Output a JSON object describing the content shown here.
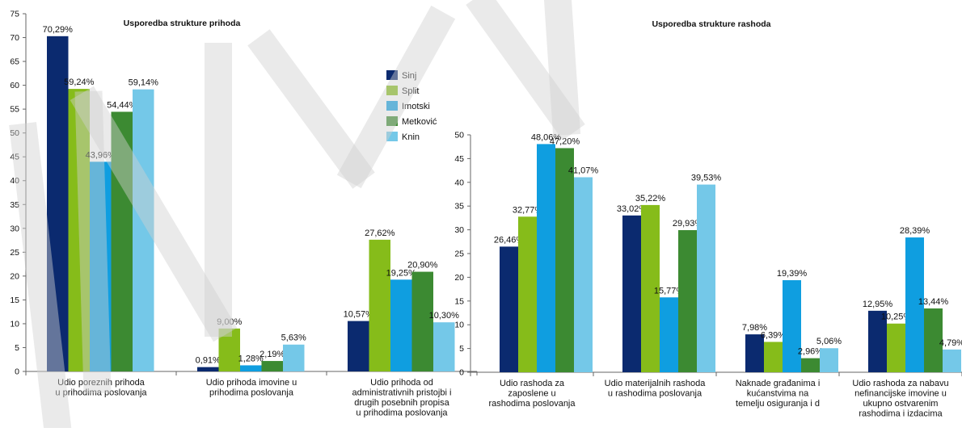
{
  "chart_data": [
    {
      "type": "bar",
      "title": "Usporedba strukture prihoda",
      "ylim": [
        0,
        75
      ],
      "yticks": [
        0,
        5,
        10,
        15,
        20,
        25,
        30,
        35,
        40,
        45,
        50,
        55,
        60,
        65,
        70,
        75
      ],
      "categories": [
        [
          "Udio poreznih prihoda",
          "u prihodima poslovanja"
        ],
        [
          "Udio prihoda imovine u",
          "prihodima poslovanja"
        ],
        [
          "Udio prihoda od",
          "administrativnih pristojbi i",
          "drugih posebnih propisa",
          "u prihodima poslovanja"
        ]
      ],
      "series": [
        {
          "name": "Sinj",
          "color": "#0b2a6f",
          "values": [
            70.29,
            0.91,
            10.57
          ],
          "labels": [
            "70,29%",
            "0,91%",
            "10,57%"
          ]
        },
        {
          "name": "Split",
          "color": "#86bc1a",
          "values": [
            59.24,
            9.0,
            27.62
          ],
          "labels": [
            "59,24%",
            "9,00%",
            "27,62%"
          ]
        },
        {
          "name": "Imotski",
          "color": "#0f9ee0",
          "values": [
            43.96,
            1.28,
            19.25
          ],
          "labels": [
            "43,96%",
            "1,28%",
            "19,25%"
          ]
        },
        {
          "name": "Metković",
          "color": "#3c8a32",
          "values": [
            54.44,
            2.19,
            20.9
          ],
          "labels": [
            "54,44%",
            "2,19%",
            "20,90%"
          ]
        },
        {
          "name": "Knin",
          "color": "#74c8e8",
          "values": [
            59.14,
            5.63,
            10.3
          ],
          "labels": [
            "59,14%",
            "5,63%",
            "10,30%"
          ]
        }
      ],
      "legend": "inside-right"
    },
    {
      "type": "bar",
      "title": "Usporedba strukture rashoda",
      "ylim": [
        0,
        50
      ],
      "yticks": [
        0,
        5,
        10,
        15,
        20,
        25,
        30,
        35,
        40,
        45,
        50
      ],
      "categories": [
        [
          "Udio rashoda za",
          "zaposlene u",
          "rashodima poslovanja"
        ],
        [
          "Udio materijalnih rashoda",
          "u rashodima poslovanja"
        ],
        [
          "Naknade građanima i",
          "kućanstvima na",
          "temelju osiguranja i d"
        ],
        [
          "Udio rashoda za nabavu",
          "nefinancijske imovine u",
          "ukupno ostvarenim",
          "rashodima i izdacima"
        ]
      ],
      "series": [
        {
          "name": "Sinj",
          "color": "#0b2a6f",
          "values": [
            26.46,
            33.02,
            7.98,
            12.95
          ],
          "labels": [
            "26,46%",
            "33,02%",
            "7,98%",
            "12,95%"
          ]
        },
        {
          "name": "Split",
          "color": "#86bc1a",
          "values": [
            32.77,
            35.22,
            6.39,
            10.25
          ],
          "labels": [
            "32,77%",
            "35,22%",
            "6,39%",
            "10,25%"
          ]
        },
        {
          "name": "Imotski",
          "color": "#0f9ee0",
          "values": [
            48.06,
            15.77,
            19.39,
            28.39
          ],
          "labels": [
            "48,06%",
            "15,77%",
            "19,39%",
            "28,39%"
          ]
        },
        {
          "name": "Metković",
          "color": "#3c8a32",
          "values": [
            47.2,
            29.93,
            2.96,
            13.44
          ],
          "labels": [
            "47,20%",
            "29,93%",
            "2,96%",
            "13,44%"
          ]
        },
        {
          "name": "Knin",
          "color": "#74c8e8",
          "values": [
            41.07,
            39.53,
            5.06,
            4.79
          ],
          "labels": [
            "41,07%",
            "39,53%",
            "5,06%",
            "4,79%"
          ]
        }
      ]
    }
  ]
}
